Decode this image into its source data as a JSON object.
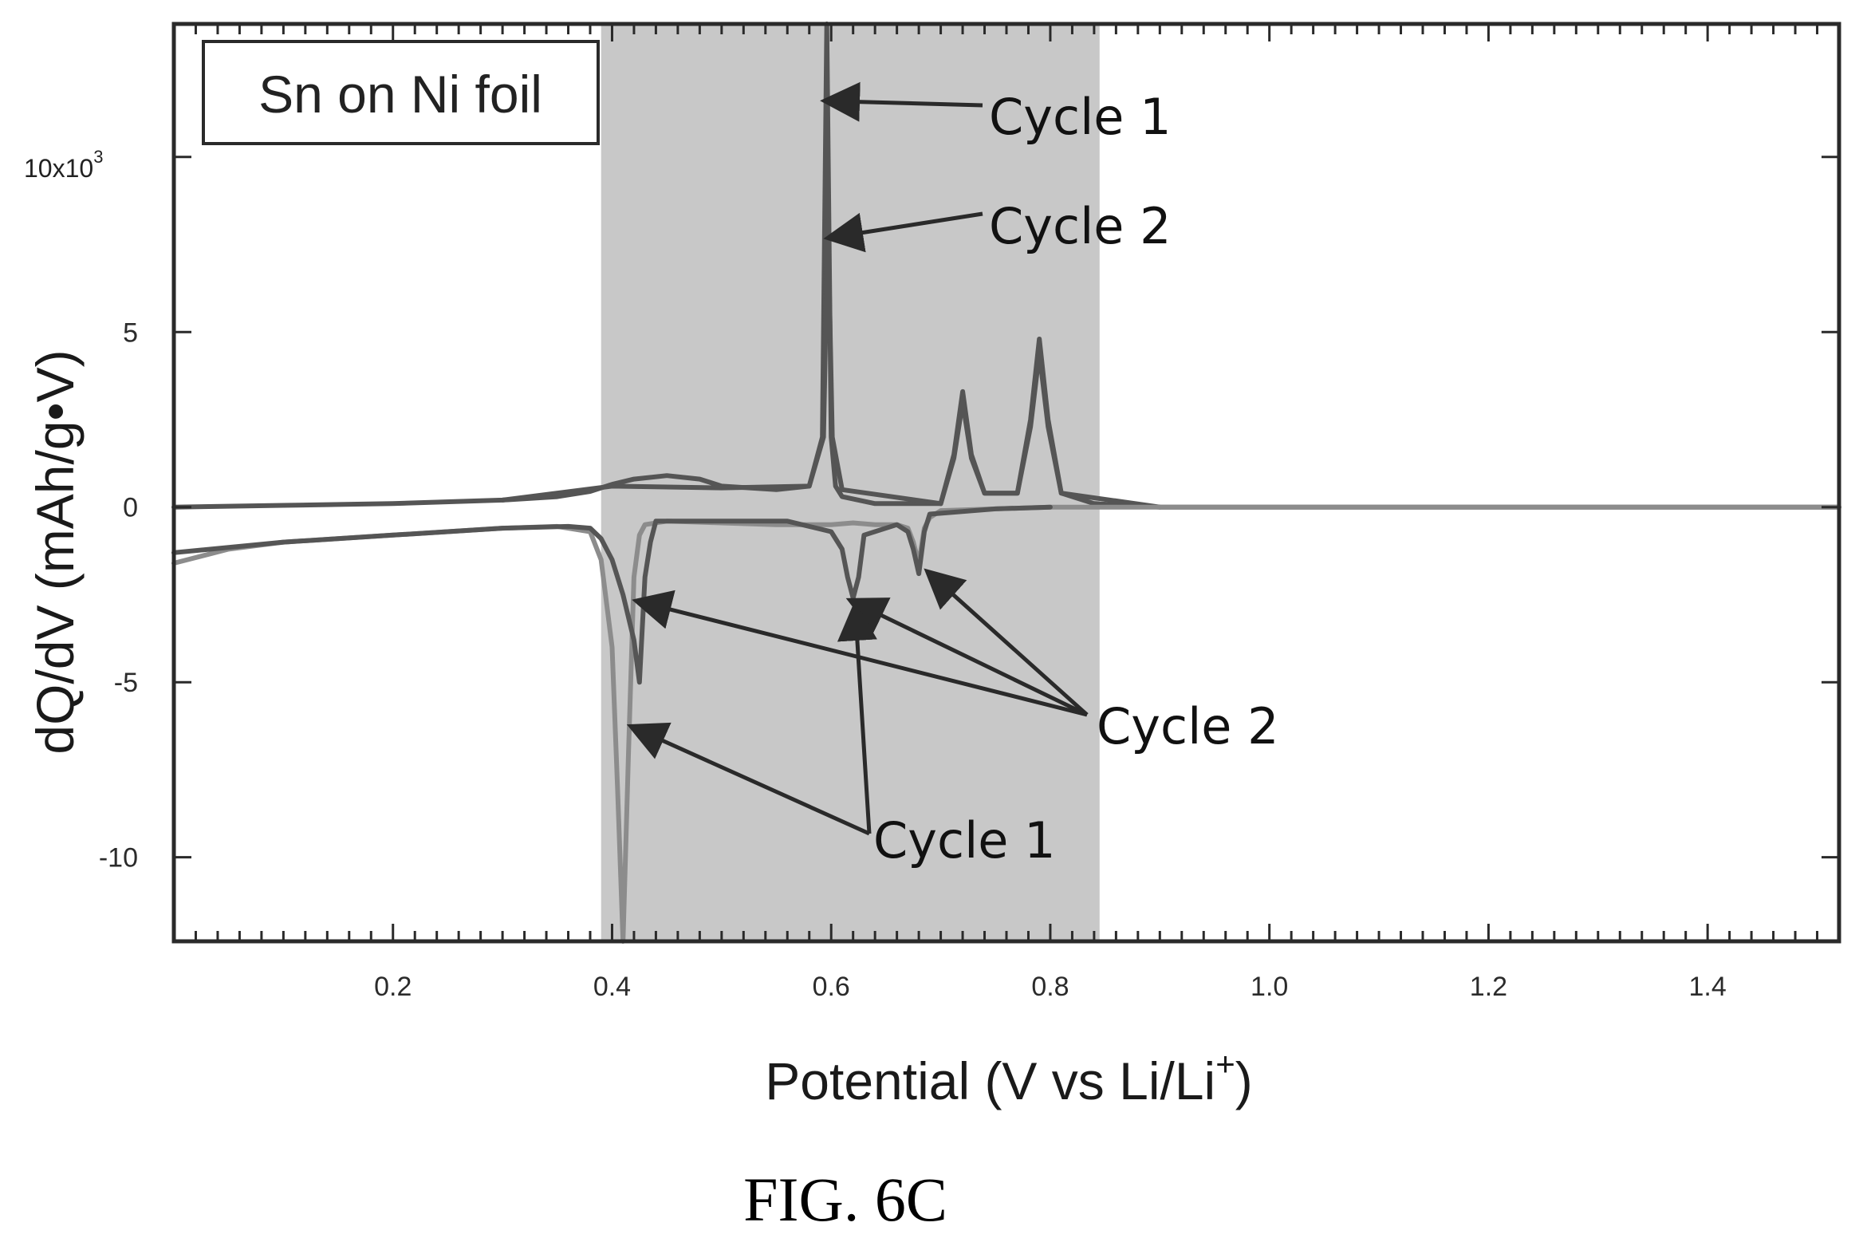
{
  "chart_data": {
    "type": "line",
    "inset_label": "Sn on Ni foil",
    "xlabel": "Potential (V vs Li/Li",
    "xlabel_sup": "+",
    "xlabel_end": ")",
    "ylabel": "dQ/dV (mAh/g•V)",
    "y_multiplier_base": "10x10",
    "y_multiplier_exp": "3",
    "xlim": [
      0.0,
      1.52
    ],
    "ylim": [
      -12.4,
      13.8
    ],
    "x_ticks": [
      0.2,
      0.4,
      0.6,
      0.8,
      1.0,
      1.2,
      1.4
    ],
    "x_tick_labels": [
      "0.2",
      "0.4",
      "0.6",
      "0.8",
      "1.0",
      "1.2",
      "1.4"
    ],
    "y_ticks": [
      10,
      5,
      0,
      -5,
      -10
    ],
    "y_tick_labels": [
      "",
      "5",
      "0",
      "-5",
      "-10"
    ],
    "shaded_region": [
      0.39,
      0.845
    ],
    "grid": false,
    "colors": {
      "trace_dark": "#555555",
      "trace_light": "#8c8c8c",
      "shade": "#c8c8c8",
      "frame": "#2a2a2a"
    },
    "series": [
      {
        "kind": "delithiation",
        "x": [
          0.0,
          0.1,
          0.2,
          0.3,
          0.35,
          0.38,
          0.4,
          0.42,
          0.45,
          0.48,
          0.5,
          0.55,
          0.58,
          0.592,
          0.596,
          0.6,
          0.604,
          0.61,
          0.64,
          0.7,
          0.712,
          0.72,
          0.728,
          0.74,
          0.77,
          0.782,
          0.79,
          0.798,
          0.81,
          0.84,
          0.9,
          1.0,
          1.2,
          1.4,
          1.52
        ],
        "y": [
          0.0,
          0.05,
          0.1,
          0.2,
          0.3,
          0.45,
          0.65,
          0.8,
          0.9,
          0.8,
          0.6,
          0.5,
          0.6,
          2.0,
          13.8,
          2.0,
          0.6,
          0.3,
          0.1,
          0.1,
          1.5,
          3.3,
          1.5,
          0.4,
          0.4,
          2.5,
          4.8,
          2.5,
          0.4,
          0.1,
          0.0,
          0.0,
          0.0,
          0.0,
          0.0
        ]
      },
      {
        "kind": "delithiation",
        "x": [
          0.3,
          0.4,
          0.5,
          0.58,
          0.593,
          0.597,
          0.601,
          0.61,
          0.7,
          0.712,
          0.72,
          0.728,
          0.74,
          0.77,
          0.782,
          0.79,
          0.798,
          0.81,
          0.9
        ],
        "y": [
          0.2,
          0.6,
          0.55,
          0.6,
          2.0,
          8.2,
          2.0,
          0.5,
          0.1,
          1.4,
          3.0,
          1.4,
          0.4,
          0.4,
          2.3,
          4.4,
          2.3,
          0.4,
          0.0
        ]
      },
      {
        "kind": "lithiation",
        "x": [
          0.0,
          0.05,
          0.1,
          0.2,
          0.3,
          0.35,
          0.38,
          0.39,
          0.4,
          0.405,
          0.41,
          0.415,
          0.42,
          0.425,
          0.43,
          0.45,
          0.5,
          0.55,
          0.6,
          0.62,
          0.64,
          0.66,
          0.67,
          0.675,
          0.68,
          0.685,
          0.69,
          0.7,
          0.8,
          1.0,
          1.2,
          1.4,
          1.52
        ],
        "y": [
          -1.6,
          -1.2,
          -1.0,
          -0.8,
          -0.6,
          -0.55,
          -0.7,
          -1.5,
          -4.0,
          -8.0,
          -12.4,
          -7.0,
          -2.0,
          -0.8,
          -0.5,
          -0.4,
          -0.45,
          -0.5,
          -0.5,
          -0.45,
          -0.5,
          -0.5,
          -0.6,
          -1.0,
          -1.6,
          -0.6,
          -0.3,
          -0.1,
          0.0,
          0.0,
          0.0,
          0.0,
          0.0
        ]
      },
      {
        "kind": "lithiation",
        "x": [
          0.0,
          0.1,
          0.2,
          0.3,
          0.36,
          0.38,
          0.39,
          0.4,
          0.41,
          0.42,
          0.425,
          0.43,
          0.435,
          0.44,
          0.5,
          0.56,
          0.6,
          0.61,
          0.615,
          0.62,
          0.625,
          0.63,
          0.66,
          0.67,
          0.675,
          0.68,
          0.685,
          0.69,
          0.75,
          0.8
        ],
        "y": [
          -1.3,
          -1.0,
          -0.8,
          -0.6,
          -0.55,
          -0.6,
          -0.9,
          -1.5,
          -2.5,
          -3.8,
          -5.0,
          -2.0,
          -1.0,
          -0.4,
          -0.4,
          -0.4,
          -0.7,
          -1.2,
          -2.0,
          -2.6,
          -2.0,
          -0.8,
          -0.5,
          -0.7,
          -1.2,
          -1.9,
          -0.7,
          -0.2,
          -0.05,
          0.0
        ]
      }
    ],
    "annotations": [
      {
        "text": "Cycle 1",
        "arrow_targets": [
          [
            0.597,
            11.6
          ]
        ]
      },
      {
        "text": "Cycle 2",
        "arrow_targets": [
          [
            0.6,
            7.7
          ]
        ]
      },
      {
        "text": "Cycle 2",
        "arrow_targets": [
          [
            0.425,
            -2.7
          ],
          [
            0.62,
            -2.7
          ],
          [
            0.69,
            -1.9
          ]
        ]
      },
      {
        "text": "Cycle 1",
        "arrow_targets": [
          [
            0.42,
            -6.3
          ],
          [
            0.622,
            -2.9
          ]
        ]
      }
    ]
  },
  "caption": "FIG. 6C"
}
